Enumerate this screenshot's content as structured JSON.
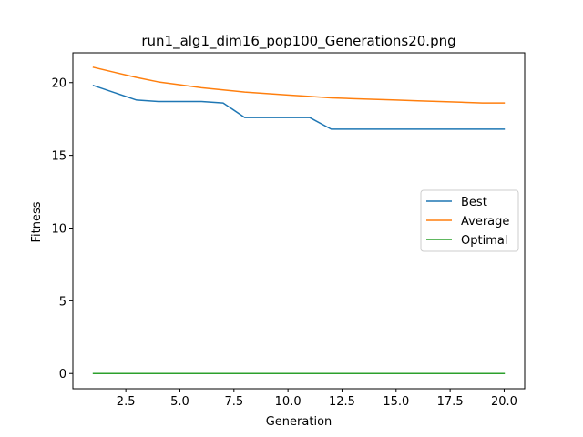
{
  "chart_data": {
    "type": "line",
    "title": "run1_alg1_dim16_pop100_Generations20.png",
    "xlabel": "Generation",
    "ylabel": "Fitness",
    "xlim": [
      0.05,
      20.95
    ],
    "ylim": [
      -1.05,
      22.05
    ],
    "xticks": [
      2.5,
      5.0,
      7.5,
      10.0,
      12.5,
      15.0,
      17.5,
      20.0
    ],
    "xtick_labels": [
      "2.5",
      "5.0",
      "7.5",
      "10.0",
      "12.5",
      "15.0",
      "17.5",
      "20.0"
    ],
    "yticks": [
      0,
      5,
      10,
      15,
      20
    ],
    "ytick_labels": [
      "0",
      "5",
      "10",
      "15",
      "20"
    ],
    "grid": false,
    "legend": "center-right",
    "x": [
      1,
      2,
      3,
      4,
      5,
      6,
      7,
      8,
      9,
      10,
      11,
      12,
      13,
      14,
      15,
      16,
      17,
      18,
      19,
      20
    ],
    "series": [
      {
        "name": "Best",
        "color": "#1f77b4",
        "values": [
          19.8,
          19.3,
          18.8,
          18.7,
          18.7,
          18.7,
          18.6,
          17.6,
          17.6,
          17.6,
          17.6,
          16.8,
          16.8,
          16.8,
          16.8,
          16.8,
          16.8,
          16.8,
          16.8,
          16.8
        ]
      },
      {
        "name": "Average",
        "color": "#ff7f0e",
        "values": [
          21.05,
          20.7,
          20.35,
          20.05,
          19.85,
          19.65,
          19.5,
          19.35,
          19.25,
          19.15,
          19.05,
          18.95,
          18.9,
          18.85,
          18.8,
          18.75,
          18.7,
          18.65,
          18.6,
          18.6
        ]
      },
      {
        "name": "Optimal",
        "color": "#2ca02c",
        "values": [
          0,
          0,
          0,
          0,
          0,
          0,
          0,
          0,
          0,
          0,
          0,
          0,
          0,
          0,
          0,
          0,
          0,
          0,
          0,
          0
        ]
      }
    ]
  }
}
